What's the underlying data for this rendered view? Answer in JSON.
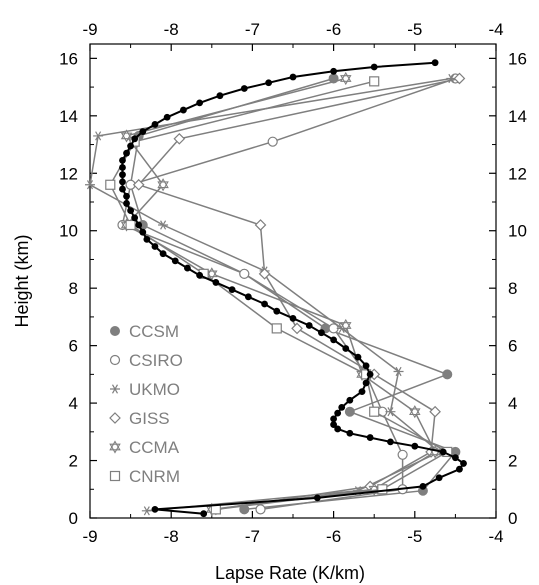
{
  "chart_data": {
    "type": "line",
    "title": "",
    "xlabel": "Lapse Rate (K/km)",
    "ylabel": "Height (km)",
    "xlim": [
      -9,
      -4
    ],
    "ylim": [
      0,
      16.5
    ],
    "x_ticks": [
      "-9",
      "-8",
      "-7",
      "-6",
      "-5",
      "-4"
    ],
    "y_ticks": [
      "0",
      "2",
      "4",
      "6",
      "8",
      "10",
      "12",
      "14",
      "16"
    ],
    "top_axis": "mirrors bottom",
    "right_axis": "mirrors left",
    "grid": false,
    "legend_position": "lower-left",
    "colors": {
      "reference": "#000000",
      "models": "#7f7f7f"
    },
    "reference_series": {
      "name": "",
      "style": "black line with filled dots",
      "points": [
        [
          -7.6,
          0.15
        ],
        [
          -8.2,
          0.3
        ],
        [
          -6.2,
          0.7
        ],
        [
          -4.9,
          1.1
        ],
        [
          -4.7,
          1.4
        ],
        [
          -4.45,
          1.7
        ],
        [
          -4.4,
          1.9
        ],
        [
          -4.5,
          2.1
        ],
        [
          -4.65,
          2.3
        ],
        [
          -5.0,
          2.5
        ],
        [
          -5.3,
          2.65
        ],
        [
          -5.55,
          2.8
        ],
        [
          -5.8,
          2.95
        ],
        [
          -5.95,
          3.1
        ],
        [
          -6.0,
          3.25
        ],
        [
          -6.0,
          3.45
        ],
        [
          -5.95,
          3.65
        ],
        [
          -5.9,
          3.85
        ],
        [
          -5.8,
          4.1
        ],
        [
          -5.65,
          4.4
        ],
        [
          -5.6,
          4.7
        ],
        [
          -5.55,
          5.0
        ],
        [
          -5.6,
          5.3
        ],
        [
          -5.7,
          5.6
        ],
        [
          -5.85,
          5.9
        ],
        [
          -6.0,
          6.2
        ],
        [
          -6.15,
          6.45
        ],
        [
          -6.3,
          6.7
        ],
        [
          -6.5,
          6.95
        ],
        [
          -6.7,
          7.2
        ],
        [
          -6.85,
          7.45
        ],
        [
          -7.05,
          7.7
        ],
        [
          -7.25,
          7.95
        ],
        [
          -7.45,
          8.2
        ],
        [
          -7.65,
          8.45
        ],
        [
          -7.8,
          8.7
        ],
        [
          -7.95,
          8.95
        ],
        [
          -8.1,
          9.2
        ],
        [
          -8.2,
          9.45
        ],
        [
          -8.3,
          9.7
        ],
        [
          -8.35,
          9.95
        ],
        [
          -8.4,
          10.2
        ],
        [
          -8.45,
          10.45
        ],
        [
          -8.5,
          10.7
        ],
        [
          -8.55,
          10.95
        ],
        [
          -8.55,
          11.2
        ],
        [
          -8.6,
          11.45
        ],
        [
          -8.6,
          11.7
        ],
        [
          -8.6,
          11.95
        ],
        [
          -8.6,
          12.2
        ],
        [
          -8.6,
          12.45
        ],
        [
          -8.55,
          12.7
        ],
        [
          -8.5,
          12.95
        ],
        [
          -8.45,
          13.2
        ],
        [
          -8.35,
          13.45
        ],
        [
          -8.2,
          13.7
        ],
        [
          -8.05,
          13.95
        ],
        [
          -7.85,
          14.2
        ],
        [
          -7.65,
          14.45
        ],
        [
          -7.4,
          14.7
        ],
        [
          -7.1,
          14.95
        ],
        [
          -6.8,
          15.15
        ],
        [
          -6.5,
          15.35
        ],
        [
          -6.0,
          15.55
        ],
        [
          -5.5,
          15.7
        ],
        [
          -4.75,
          15.85
        ]
      ]
    },
    "series": [
      {
        "name": "CCSM",
        "marker": "filled-circle",
        "points": [
          [
            -7.1,
            0.3
          ],
          [
            -4.9,
            0.95
          ],
          [
            -4.5,
            2.3
          ],
          [
            -5.8,
            3.7
          ],
          [
            -4.6,
            5.0
          ],
          [
            -6.1,
            6.6
          ],
          [
            -7.1,
            8.5
          ],
          [
            -8.35,
            10.2
          ],
          [
            -8.5,
            11.6
          ],
          [
            -8.4,
            13.3
          ],
          [
            -6.0,
            15.3
          ]
        ]
      },
      {
        "name": "CSIRO",
        "marker": "open-circle",
        "points": [
          [
            -6.9,
            0.3
          ],
          [
            -5.15,
            1.0
          ],
          [
            -5.15,
            2.2
          ],
          [
            -5.4,
            3.7
          ],
          [
            -5.6,
            5.0
          ],
          [
            -6.0,
            6.6
          ],
          [
            -7.1,
            8.5
          ],
          [
            -8.6,
            10.2
          ],
          [
            -8.5,
            11.6
          ],
          [
            -6.75,
            13.1
          ],
          [
            -4.5,
            15.3
          ]
        ]
      },
      {
        "name": "UKMO",
        "marker": "asterisk",
        "points": [
          [
            -8.3,
            0.25
          ],
          [
            -5.7,
            0.95
          ],
          [
            -4.7,
            2.3
          ],
          [
            -5.3,
            3.7
          ],
          [
            -5.2,
            5.1
          ],
          [
            -5.9,
            6.6
          ],
          [
            -6.85,
            8.6
          ],
          [
            -8.1,
            10.2
          ],
          [
            -9.0,
            11.6
          ],
          [
            -8.9,
            13.3
          ],
          [
            -4.55,
            15.3
          ]
        ]
      },
      {
        "name": "GISS",
        "marker": "diamond",
        "points": [
          [
            -7.45,
            0.3
          ],
          [
            -5.55,
            1.1
          ],
          [
            -4.8,
            2.3
          ],
          [
            -4.75,
            3.7
          ],
          [
            -5.5,
            5.0
          ],
          [
            -6.45,
            6.6
          ],
          [
            -6.85,
            8.5
          ],
          [
            -6.9,
            10.2
          ],
          [
            -8.4,
            11.6
          ],
          [
            -7.9,
            13.2
          ],
          [
            -4.45,
            15.3
          ]
        ]
      },
      {
        "name": "CCMA",
        "marker": "star",
        "points": [
          [
            -7.5,
            0.3
          ],
          [
            -5.5,
            1.0
          ],
          [
            -4.75,
            2.3
          ],
          [
            -5.0,
            3.7
          ],
          [
            -5.65,
            5.0
          ],
          [
            -5.85,
            6.7
          ],
          [
            -7.5,
            8.5
          ],
          [
            -8.55,
            10.2
          ],
          [
            -8.1,
            11.6
          ],
          [
            -8.55,
            13.3
          ],
          [
            -5.85,
            15.3
          ]
        ]
      },
      {
        "name": "CNRM",
        "marker": "open-square",
        "points": [
          [
            -7.45,
            0.3
          ],
          [
            -5.4,
            1.0
          ],
          [
            -4.6,
            2.3
          ],
          [
            -5.5,
            3.7
          ],
          [
            -5.6,
            5.0
          ],
          [
            -6.7,
            6.6
          ],
          [
            -7.6,
            8.5
          ],
          [
            -8.5,
            10.2
          ],
          [
            -8.75,
            11.6
          ],
          [
            -8.45,
            13.1
          ],
          [
            -5.5,
            15.2
          ]
        ]
      }
    ]
  }
}
